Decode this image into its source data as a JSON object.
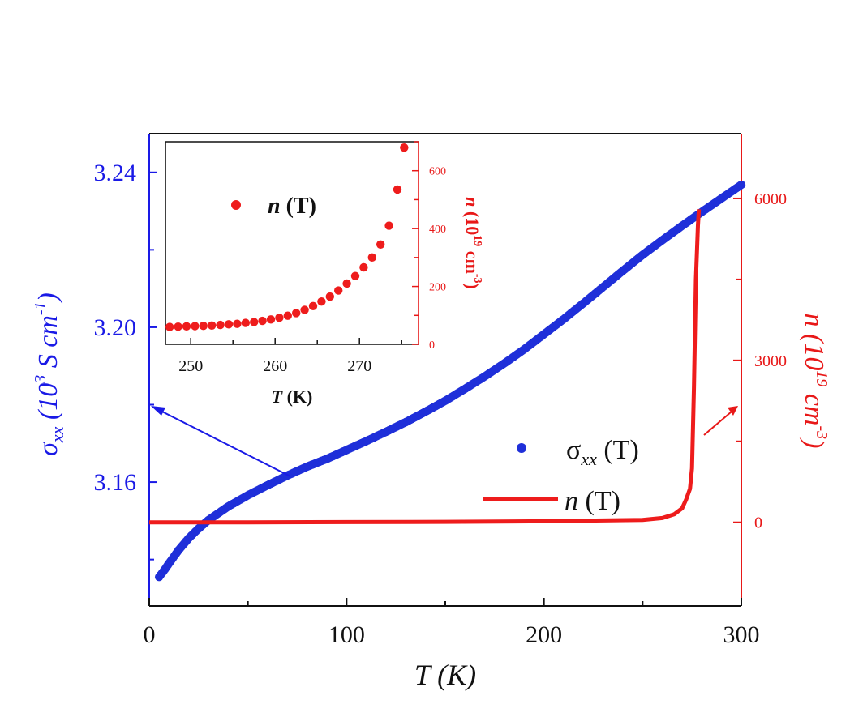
{
  "colors": {
    "left_axis": "#1a1ae6",
    "right_axis": "#e81818",
    "sigma_series": "#1f2fd9",
    "n_series": "#ee1c1c",
    "frame": "#111111"
  },
  "chart_data": [
    {
      "type": "scatter+line",
      "title": "",
      "xlabel": "T (K)",
      "ylabel_left": "σxx (10^3 S cm^-1)",
      "ylabel_right": "n (10^19 cm^-3)",
      "xlim": [
        0,
        300
      ],
      "ylim_left": [
        3.128,
        3.25
      ],
      "ylim_right": [
        -1550,
        7200
      ],
      "x_ticks": [
        "0",
        "100",
        "200",
        "300"
      ],
      "y_left_ticks": [
        "3.16",
        "3.20",
        "3.24"
      ],
      "y_right_ticks": [
        "0",
        "3000",
        "6000"
      ],
      "legend_position": "lower-right",
      "series": [
        {
          "name": "σxx (T)",
          "axis": "left",
          "style": "markers",
          "color": "#1f2fd9",
          "points": [
            [
              5,
              3.1355
            ],
            [
              8,
              3.1375
            ],
            [
              10,
              3.139
            ],
            [
              15,
              3.1425
            ],
            [
              20,
              3.1455
            ],
            [
              25,
              3.148
            ],
            [
              30,
              3.1502
            ],
            [
              40,
              3.1537
            ],
            [
              50,
              3.1566
            ],
            [
              60,
              3.1592
            ],
            [
              70,
              3.1617
            ],
            [
              80,
              3.164
            ],
            [
              90,
              3.166
            ],
            [
              100,
              3.1683
            ],
            [
              110,
              3.1706
            ],
            [
              120,
              3.173
            ],
            [
              130,
              3.1755
            ],
            [
              140,
              3.1782
            ],
            [
              150,
              3.181
            ],
            [
              160,
              3.1841
            ],
            [
              170,
              3.1873
            ],
            [
              180,
              3.1907
            ],
            [
              190,
              3.1943
            ],
            [
              200,
              3.1982
            ],
            [
              210,
              3.2021
            ],
            [
              220,
              3.2062
            ],
            [
              230,
              3.2104
            ],
            [
              240,
              3.2146
            ],
            [
              250,
              3.2187
            ],
            [
              260,
              3.2225
            ],
            [
              270,
              3.2262
            ],
            [
              280,
              3.2298
            ],
            [
              290,
              3.2333
            ],
            [
              300,
              3.2368
            ]
          ]
        },
        {
          "name": "n (T)",
          "axis": "right",
          "style": "line",
          "color": "#ee1c1c",
          "points": [
            [
              0,
              0
            ],
            [
              50,
              0
            ],
            [
              100,
              5
            ],
            [
              150,
              10
            ],
            [
              200,
              20
            ],
            [
              230,
              35
            ],
            [
              250,
              45
            ],
            [
              260,
              80
            ],
            [
              266,
              150
            ],
            [
              270,
              260
            ],
            [
              272,
              420
            ],
            [
              274,
              620
            ],
            [
              275,
              1000
            ],
            [
              276,
              2500
            ],
            [
              277,
              4500
            ],
            [
              278,
              5500
            ],
            [
              278.5,
              5800
            ]
          ]
        }
      ],
      "legend": [
        {
          "label": "σxx (T)",
          "symbol": "circle"
        },
        {
          "label": "n (T)",
          "symbol": "line"
        }
      ]
    },
    {
      "type": "scatter",
      "title": "",
      "xlabel": "T (K)",
      "ylabel_right": "n (10^19 cm^-3)",
      "xlim": [
        247,
        277
      ],
      "ylim_right": [
        0,
        700
      ],
      "x_ticks": [
        "250",
        "260",
        "270"
      ],
      "y_right_ticks": [
        "0",
        "200",
        "400",
        "600"
      ],
      "legend_position": "top-left",
      "series": [
        {
          "name": "n (T)",
          "color": "#ee1c1c",
          "points": [
            [
              247.5,
              60
            ],
            [
              248.5,
              61
            ],
            [
              249.5,
              62
            ],
            [
              250.5,
              63
            ],
            [
              251.5,
              64
            ],
            [
              252.5,
              65
            ],
            [
              253.5,
              67
            ],
            [
              254.5,
              69
            ],
            [
              255.5,
              71
            ],
            [
              256.5,
              74
            ],
            [
              257.5,
              77
            ],
            [
              258.5,
              81
            ],
            [
              259.5,
              86
            ],
            [
              260.5,
              92
            ],
            [
              261.5,
              99
            ],
            [
              262.5,
              108
            ],
            [
              263.5,
              119
            ],
            [
              264.5,
              132
            ],
            [
              265.5,
              148
            ],
            [
              266.5,
              165
            ],
            [
              267.5,
              186
            ],
            [
              268.5,
              210
            ],
            [
              269.5,
              236
            ],
            [
              270.5,
              266
            ],
            [
              271.5,
              300
            ],
            [
              272.5,
              345
            ],
            [
              273.5,
              410
            ],
            [
              274.5,
              535
            ],
            [
              275.3,
              680
            ]
          ]
        }
      ],
      "legend": [
        {
          "label": "n (T)",
          "symbol": "circle"
        }
      ]
    }
  ]
}
